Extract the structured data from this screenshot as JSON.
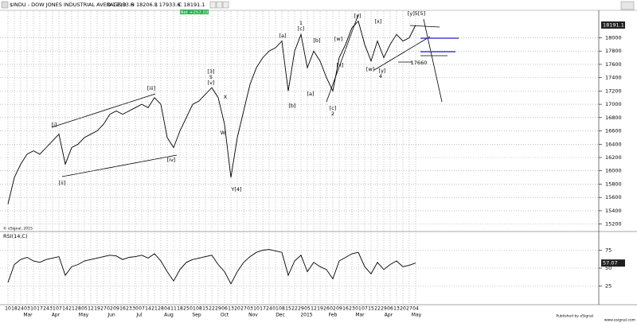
{
  "chart_data": [
    {
      "type": "line",
      "title": "$INDU - DOW JONES INDUSTRIAL AVERAGE,D",
      "ohlc_labels": [
        "O 17933.6",
        "H 18206.3",
        "L 17933.6",
        "C 18191.1"
      ],
      "change": "Net +257.03",
      "watermark": "© eSignal, 2015",
      "categories": [
        "10",
        "18",
        "24",
        "03",
        "10",
        "17",
        "24",
        "31",
        "07",
        "14",
        "21",
        "28",
        "05",
        "12",
        "19",
        "27",
        "02",
        "09",
        "16",
        "23",
        "30",
        "07",
        "14",
        "21",
        "28",
        "04",
        "11",
        "18",
        "25",
        "01",
        "08",
        "15",
        "22",
        "29",
        "06",
        "13",
        "20",
        "27",
        "03",
        "10",
        "17",
        "24",
        "01",
        "08",
        "15",
        "22",
        "29",
        "05",
        "12",
        "19",
        "26",
        "02",
        "09",
        "16",
        "23",
        "01",
        "07",
        "15",
        "22",
        "29",
        "06",
        "13",
        "20",
        "27",
        "04"
      ],
      "months": [
        "Mar",
        "Apr",
        "May",
        "Jun",
        "Jul",
        "Aug",
        "Sep",
        "Oct",
        "Nov",
        "Dec",
        "2015",
        "Feb",
        "Mar",
        "Apr",
        "May"
      ],
      "values": [
        15500,
        15900,
        16100,
        16250,
        16300,
        16250,
        16350,
        16450,
        16550,
        16100,
        16350,
        16400,
        16500,
        16550,
        16600,
        16700,
        16850,
        16900,
        16850,
        16900,
        16950,
        17000,
        16950,
        17100,
        17000,
        16500,
        16350,
        16600,
        16800,
        17000,
        17050,
        17150,
        17250,
        17100,
        16700,
        15900,
        16500,
        16900,
        17300,
        17550,
        17700,
        17800,
        17850,
        17950,
        17200,
        17800,
        18050,
        17550,
        17800,
        17650,
        17400,
        17200,
        17700,
        17900,
        18150,
        18250,
        17900,
        17650,
        17950,
        17700,
        17900,
        18050,
        17950,
        18000,
        18191.1
      ],
      "color": "#000000",
      "annotations": [
        "[i]",
        "[ii]",
        "[iii]",
        "[iv]",
        "[3]",
        "5",
        "[v]",
        "X",
        "W",
        "Y[4]",
        "[a]",
        "[b]",
        "1",
        "[c]",
        "[a]",
        "[b]",
        "[c]",
        "2",
        "[w]",
        "[x]",
        "[y]",
        "[x]",
        "[w]",
        "[y]",
        "4",
        "[y]5[5]",
        "17660"
      ],
      "ylim": [
        15100,
        18400
      ],
      "yticks": [
        15200,
        15400,
        15600,
        15800,
        16000,
        16200,
        16400,
        16600,
        16800,
        17000,
        17200,
        17400,
        17600,
        17800,
        18000
      ],
      "grid": true
    },
    {
      "type": "line",
      "title": "RSI(14,C)",
      "values": [
        30,
        55,
        62,
        65,
        60,
        58,
        62,
        64,
        66,
        40,
        52,
        55,
        60,
        62,
        64,
        66,
        68,
        67,
        62,
        65,
        66,
        68,
        64,
        70,
        60,
        45,
        32,
        48,
        58,
        62,
        64,
        66,
        68,
        55,
        45,
        28,
        45,
        58,
        66,
        72,
        75,
        76,
        74,
        72,
        40,
        60,
        68,
        45,
        58,
        52,
        48,
        35,
        60,
        65,
        70,
        72,
        52,
        42,
        58,
        48,
        55,
        60,
        52,
        54,
        57.07
      ],
      "color": "#000000",
      "ylim": [
        0,
        100
      ],
      "yticks": [
        25,
        50,
        75
      ],
      "grid": true
    }
  ],
  "footer": {
    "publisher": "Published by eSignal",
    "site": "www.esignal.com"
  }
}
